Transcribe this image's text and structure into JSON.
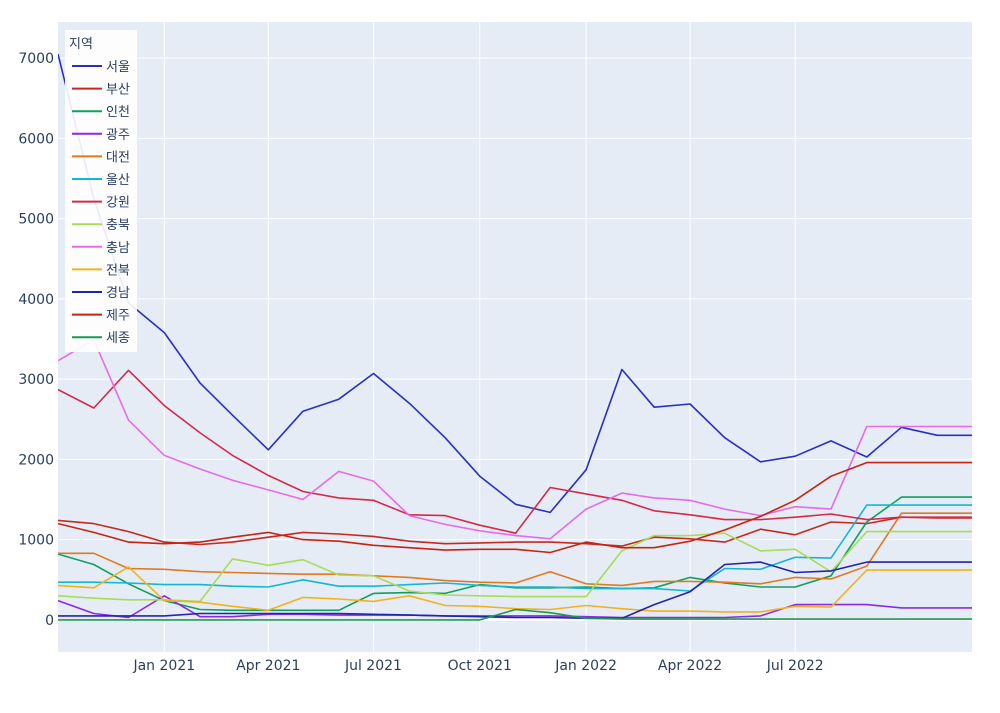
{
  "chart_data": {
    "type": "line",
    "legend": {
      "title": "지역",
      "placement": "top-left"
    },
    "grid": true,
    "xlim": [
      "2020-10-01",
      "2022-12-01"
    ],
    "ylim": [
      -400,
      7450
    ],
    "yticks": [
      0,
      1000,
      2000,
      3000,
      4000,
      5000,
      6000,
      7000
    ],
    "xticks": [
      {
        "date": "2021-01-01",
        "label": "Jan 2021"
      },
      {
        "date": "2021-04-01",
        "label": "Apr 2021"
      },
      {
        "date": "2021-07-01",
        "label": "Jul 2021"
      },
      {
        "date": "2021-10-01",
        "label": "Oct 2021"
      },
      {
        "date": "2022-01-01",
        "label": "Jan 2022"
      },
      {
        "date": "2022-04-01",
        "label": "Apr 2022"
      },
      {
        "date": "2022-07-01",
        "label": "Jul 2022"
      }
    ],
    "x": [
      "2020-10-01",
      "2020-11-01",
      "2020-12-01",
      "2021-01-01",
      "2021-02-01",
      "2021-03-01",
      "2021-04-01",
      "2021-05-01",
      "2021-06-01",
      "2021-07-01",
      "2021-08-01",
      "2021-09-01",
      "2021-10-01",
      "2021-11-01",
      "2021-12-01",
      "2022-01-01",
      "2022-02-01",
      "2022-03-01",
      "2022-04-01",
      "2022-05-01",
      "2022-06-01",
      "2022-07-01",
      "2022-08-01",
      "2022-09-01",
      "2022-10-01",
      "2022-11-01",
      "2022-12-01"
    ],
    "series": [
      {
        "name": "서울",
        "color": "#2a2fc4",
        "values": [
          7050,
          5250,
          3950,
          3580,
          2950,
          2550,
          2120,
          2600,
          2750,
          3070,
          2700,
          2270,
          1790,
          1440,
          1340,
          1870,
          3120,
          2650,
          2690,
          2270,
          1970,
          2040,
          2230,
          2030,
          2400,
          2300,
          2300
        ]
      },
      {
        "name": "부산",
        "color": "#c62a1f",
        "values": [
          1240,
          1200,
          1100,
          970,
          940,
          970,
          1030,
          1090,
          1070,
          1040,
          980,
          950,
          960,
          970,
          970,
          950,
          920,
          1030,
          1010,
          970,
          1130,
          1060,
          1220,
          1200,
          1280,
          1270,
          1270
        ]
      },
      {
        "name": "인천",
        "color": "#10a060",
        "values": [
          820,
          690,
          450,
          240,
          130,
          120,
          120,
          120,
          120,
          330,
          340,
          330,
          440,
          400,
          400,
          410,
          390,
          400,
          530,
          460,
          410,
          410,
          550,
          1220,
          1530,
          1530,
          1530
        ]
      },
      {
        "name": "광주",
        "color": "#8a2be2",
        "values": [
          240,
          80,
          30,
          300,
          40,
          40,
          70,
          70,
          60,
          60,
          60,
          50,
          50,
          50,
          50,
          40,
          30,
          30,
          30,
          30,
          50,
          190,
          190,
          190,
          150,
          150,
          150
        ]
      },
      {
        "name": "대전",
        "color": "#e07a1f",
        "values": [
          830,
          830,
          640,
          630,
          600,
          590,
          580,
          570,
          570,
          550,
          530,
          490,
          470,
          460,
          600,
          450,
          430,
          480,
          480,
          470,
          450,
          530,
          510,
          670,
          1330,
          1330,
          1330
        ]
      },
      {
        "name": "울산",
        "color": "#13b7d4",
        "values": [
          470,
          470,
          460,
          440,
          440,
          420,
          410,
          500,
          420,
          420,
          440,
          460,
          430,
          410,
          410,
          390,
          390,
          390,
          360,
          640,
          630,
          780,
          770,
          1430,
          1430,
          1430,
          1430
        ]
      },
      {
        "name": "강원",
        "color": "#d6294a",
        "values": [
          2870,
          2640,
          3110,
          2670,
          2330,
          2050,
          1800,
          1600,
          1520,
          1490,
          1310,
          1300,
          1180,
          1080,
          1650,
          1570,
          1490,
          1360,
          1310,
          1250,
          1250,
          1280,
          1320,
          1250,
          1280,
          1280,
          1280
        ]
      },
      {
        "name": "충북",
        "color": "#a8dc57",
        "values": [
          300,
          270,
          250,
          250,
          230,
          760,
          680,
          750,
          560,
          550,
          360,
          310,
          300,
          290,
          290,
          290,
          860,
          1050,
          1050,
          1080,
          860,
          880,
          600,
          1100,
          1100,
          1100,
          1100
        ]
      },
      {
        "name": "충남",
        "color": "#e86be6",
        "values": [
          3230,
          3490,
          2490,
          2050,
          1880,
          1740,
          1620,
          1500,
          1850,
          1730,
          1300,
          1190,
          1110,
          1050,
          1010,
          1380,
          1580,
          1520,
          1490,
          1380,
          1300,
          1410,
          1380,
          2410,
          2410,
          2410,
          2410
        ]
      },
      {
        "name": "전북",
        "color": "#f2b21d",
        "values": [
          430,
          400,
          660,
          240,
          220,
          170,
          120,
          280,
          260,
          230,
          300,
          180,
          170,
          140,
          130,
          180,
          140,
          110,
          110,
          100,
          100,
          170,
          160,
          620,
          620,
          620,
          620
        ]
      },
      {
        "name": "경남",
        "color": "#2424a8",
        "values": [
          50,
          50,
          50,
          50,
          80,
          80,
          80,
          80,
          80,
          70,
          60,
          50,
          40,
          30,
          30,
          20,
          20,
          190,
          350,
          690,
          720,
          590,
          610,
          720,
          720,
          720,
          720
        ]
      },
      {
        "name": "제주",
        "color": "#c62410",
        "values": [
          1200,
          1090,
          970,
          950,
          970,
          1030,
          1090,
          1000,
          980,
          930,
          900,
          870,
          880,
          880,
          840,
          970,
          900,
          900,
          980,
          1120,
          1290,
          1490,
          1790,
          1960,
          1960,
          1960,
          1960
        ]
      },
      {
        "name": "세종",
        "color": "#1a9a50",
        "values": [
          0,
          0,
          0,
          0,
          0,
          0,
          0,
          0,
          0,
          0,
          0,
          0,
          0,
          130,
          90,
          20,
          10,
          10,
          10,
          10,
          10,
          10,
          10,
          10,
          10,
          10,
          10
        ]
      }
    ]
  }
}
